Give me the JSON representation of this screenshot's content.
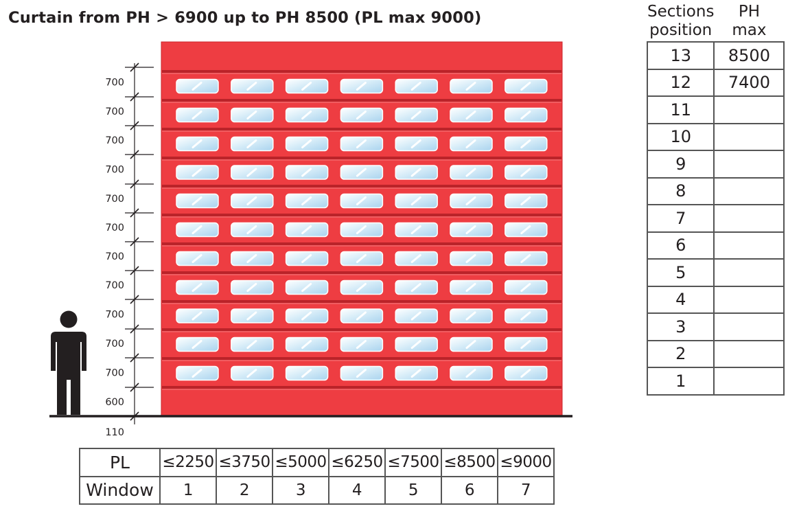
{
  "title": "Curtain from PH > 6900 up to PH 8500 (PL max 9000)",
  "colors": {
    "curtain_red": "#ee3d42",
    "section_line": "#b01e24",
    "window_blue": "#cfe6f5",
    "person": "#231f20",
    "table_border": "#555555"
  },
  "dimensions": {
    "section_labels": [
      "700",
      "700",
      "700",
      "700",
      "700",
      "700",
      "700",
      "700",
      "700",
      "700",
      "700",
      "600"
    ],
    "base_label": "110"
  },
  "curtain": {
    "window_rows": 11,
    "windows_per_row": 7
  },
  "icons": {
    "person": "person-silhouette-icon",
    "window": "glazed-window-icon"
  },
  "sections_table": {
    "header_position": [
      "Sections",
      "position"
    ],
    "header_ph": [
      "PH",
      "max"
    ],
    "rows": [
      {
        "position": "13",
        "ph_max": "8500"
      },
      {
        "position": "12",
        "ph_max": "7400"
      },
      {
        "position": "11",
        "ph_max": ""
      },
      {
        "position": "10",
        "ph_max": ""
      },
      {
        "position": "9",
        "ph_max": ""
      },
      {
        "position": "8",
        "ph_max": ""
      },
      {
        "position": "7",
        "ph_max": ""
      },
      {
        "position": "6",
        "ph_max": ""
      },
      {
        "position": "5",
        "ph_max": ""
      },
      {
        "position": "4",
        "ph_max": ""
      },
      {
        "position": "3",
        "ph_max": ""
      },
      {
        "position": "2",
        "ph_max": ""
      },
      {
        "position": "1",
        "ph_max": ""
      }
    ]
  },
  "pl_table": {
    "pl_label": "PL",
    "window_label": "Window",
    "columns": [
      {
        "pl": "≤2250",
        "window": "1"
      },
      {
        "pl": "≤3750",
        "window": "2"
      },
      {
        "pl": "≤5000",
        "window": "3"
      },
      {
        "pl": "≤6250",
        "window": "4"
      },
      {
        "pl": "≤7500",
        "window": "5"
      },
      {
        "pl": "≤8500",
        "window": "6"
      },
      {
        "pl": "≤9000",
        "window": "7"
      }
    ]
  }
}
